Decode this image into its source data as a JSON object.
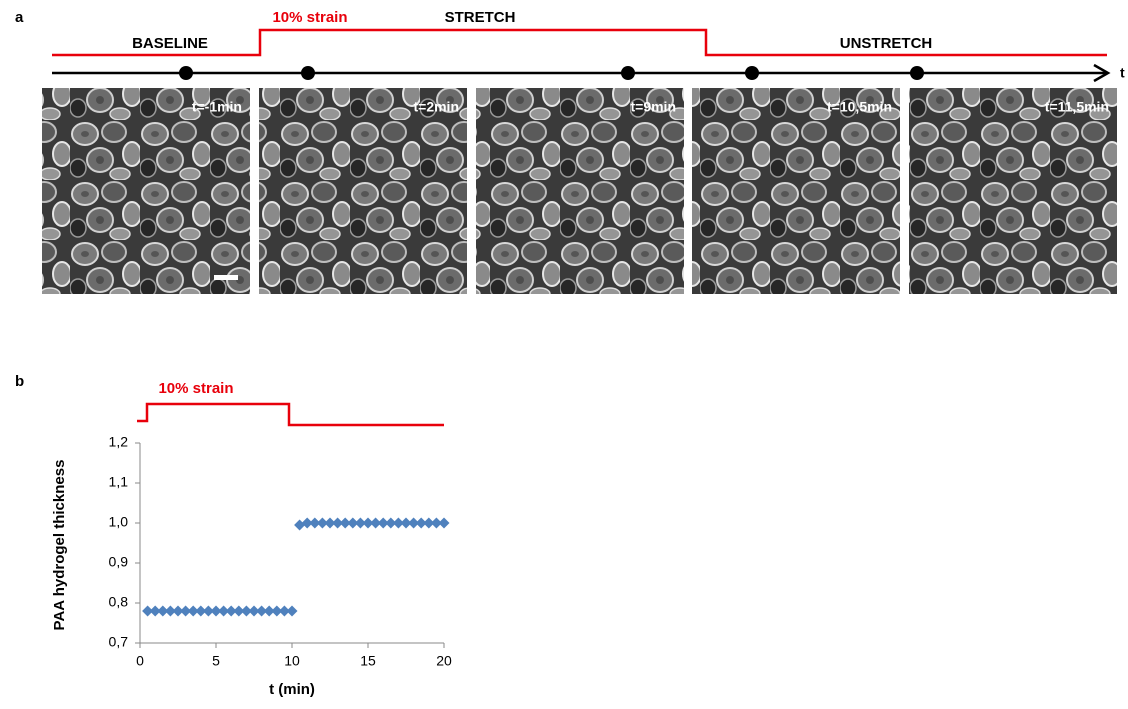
{
  "panel_a": {
    "label": "a",
    "strain_label": "10% strain",
    "phases": [
      "BASELINE",
      "STRETCH",
      "UNSTRETCH"
    ],
    "axis_label": "t",
    "frames": [
      "t=-1min",
      "t=2min",
      "t=9min",
      "t=10,5min",
      "t=11,5min"
    ]
  },
  "chart_data": {
    "type": "scatter",
    "panel_label": "b",
    "strain_label": "10% strain",
    "ylabel": "PAA hydrogel thickness",
    "xlabel": "t (min)",
    "x": [
      0.5,
      1,
      1.5,
      2,
      2.5,
      3,
      3.5,
      4,
      4.5,
      5,
      5.5,
      6,
      6.5,
      7,
      7.5,
      8,
      8.5,
      9,
      9.5,
      10,
      10.5,
      11,
      11.5,
      12,
      12.5,
      13,
      13.5,
      14,
      14.5,
      15,
      15.5,
      16,
      16.5,
      17,
      17.5,
      18,
      18.5,
      19,
      19.5,
      20
    ],
    "values": [
      0.78,
      0.78,
      0.78,
      0.78,
      0.78,
      0.78,
      0.78,
      0.78,
      0.78,
      0.78,
      0.78,
      0.78,
      0.78,
      0.78,
      0.78,
      0.78,
      0.78,
      0.78,
      0.78,
      0.78,
      0.995,
      1.0,
      1.0,
      1.0,
      1.0,
      1.0,
      1.0,
      1.0,
      1.0,
      1.0,
      1.0,
      1.0,
      1.0,
      1.0,
      1.0,
      1.0,
      1.0,
      1.0,
      1.0,
      1.0
    ],
    "color": "#4f81bd",
    "xlim": [
      0,
      20
    ],
    "xticks": [
      0,
      5,
      10,
      15,
      20
    ],
    "ylim": [
      0.7,
      1.2
    ],
    "yticks": [
      {
        "value": 0.7,
        "label": "0,7"
      },
      {
        "value": 0.8,
        "label": "0,8"
      },
      {
        "value": 0.9,
        "label": "0,9"
      },
      {
        "value": 1.0,
        "label": "1,0"
      },
      {
        "value": 1.1,
        "label": "1,1"
      },
      {
        "value": 1.2,
        "label": "1,2"
      }
    ]
  }
}
